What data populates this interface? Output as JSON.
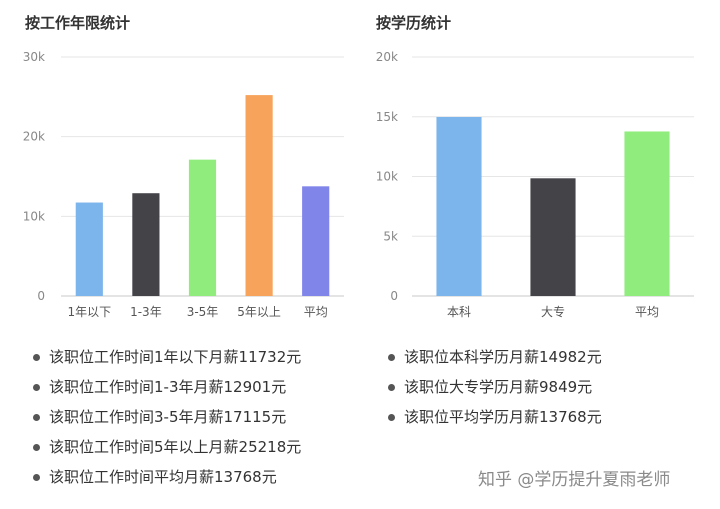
{
  "chart_data": [
    {
      "type": "bar",
      "title": "按工作年限统计",
      "categories": [
        "1年以下",
        "1-3年",
        "3-5年",
        "5年以上",
        "平均"
      ],
      "values": [
        11732,
        12901,
        17115,
        25218,
        13768
      ],
      "colors": [
        "#7cb5ec",
        "#434348",
        "#90ed7d",
        "#f7a35c",
        "#8085e9"
      ],
      "ylim": [
        0,
        30000
      ],
      "yticks": [
        0,
        10000,
        20000,
        30000
      ],
      "ytick_labels": [
        "0",
        "10k",
        "20k",
        "30k"
      ],
      "grid": true,
      "xlabel": "",
      "ylabel": ""
    },
    {
      "type": "bar",
      "title": "按学历统计",
      "categories": [
        "本科",
        "大专",
        "平均"
      ],
      "values": [
        14982,
        9849,
        13768
      ],
      "colors": [
        "#7cb5ec",
        "#434348",
        "#90ed7d"
      ],
      "ylim": [
        0,
        20000
      ],
      "yticks": [
        0,
        5000,
        10000,
        15000,
        20000
      ],
      "ytick_labels": [
        "0",
        "5k",
        "10k",
        "15k",
        "20k"
      ],
      "grid": true,
      "xlabel": "",
      "ylabel": ""
    }
  ],
  "notes_left": [
    "该职位工作时间1年以下月薪11732元",
    "该职位工作时间1-3年月薪12901元",
    "该职位工作时间3-5年月薪17115元",
    "该职位工作时间5年以上月薪25218元",
    "该职位工作时间平均月薪13768元"
  ],
  "notes_right": [
    "该职位本科学历月薪14982元",
    "该职位大专学历月薪9849元",
    "该职位平均学历月薪13768元"
  ],
  "watermark": "知乎 @学历提升夏雨老师"
}
